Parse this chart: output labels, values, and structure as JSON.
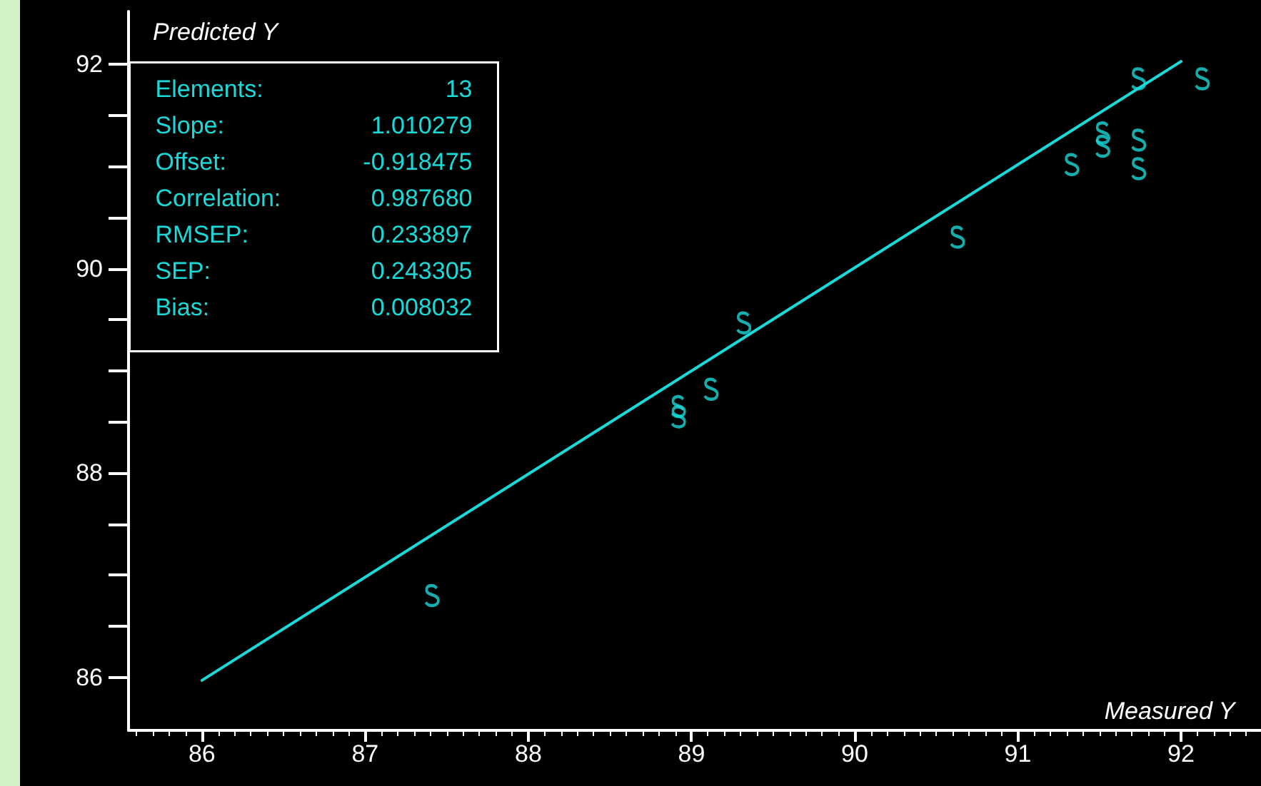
{
  "chart_data": {
    "type": "scatter",
    "xlabel": "Measured Y",
    "ylabel": "Predicted Y",
    "annotations": [
      "Elements: 13",
      "Slope: 1.010279",
      "Offset: -0.918475",
      "Correlation: 0.987680",
      "RMSEP: 0.233897",
      "SEP: 0.243305",
      "Bias: 0.008032"
    ],
    "series": [
      {
        "color": "#19d9d9",
        "x": [
          87.41,
          88.92,
          88.92,
          89.12,
          89.32,
          90.63,
          91.33,
          91.52,
          91.52,
          91.74,
          91.74,
          91.74,
          92.13
        ],
        "values": [
          86.8,
          88.65,
          88.55,
          88.82,
          89.47,
          90.31,
          91.02,
          91.33,
          91.2,
          91.86,
          91.26,
          90.98,
          91.86
        ]
      },
      {
        "type": "line",
        "color": "#19d9d9",
        "x": [
          86,
          92
        ],
        "values": [
          85.97,
          92.03
        ],
        "line_style": "solid",
        "marker": "none"
      }
    ],
    "xlim": [
      85.55,
      92.49
    ],
    "xticks": [
      86,
      87,
      88,
      89,
      90,
      91,
      92
    ],
    "ylim": [
      85.48,
      92.52
    ],
    "yticks": [
      86,
      {
        "value": 86.5,
        "label": null
      },
      {
        "value": 87,
        "label": null
      },
      {
        "value": 87.5,
        "label": null
      },
      88,
      {
        "value": 88.5,
        "label": null
      },
      {
        "value": 89,
        "label": null
      },
      {
        "value": 89.5,
        "label": null
      },
      90,
      {
        "value": 90.5,
        "label": null
      },
      {
        "value": 91,
        "label": null
      },
      {
        "value": 91.5,
        "label": null
      },
      92
    ],
    "grid": false
  }
}
